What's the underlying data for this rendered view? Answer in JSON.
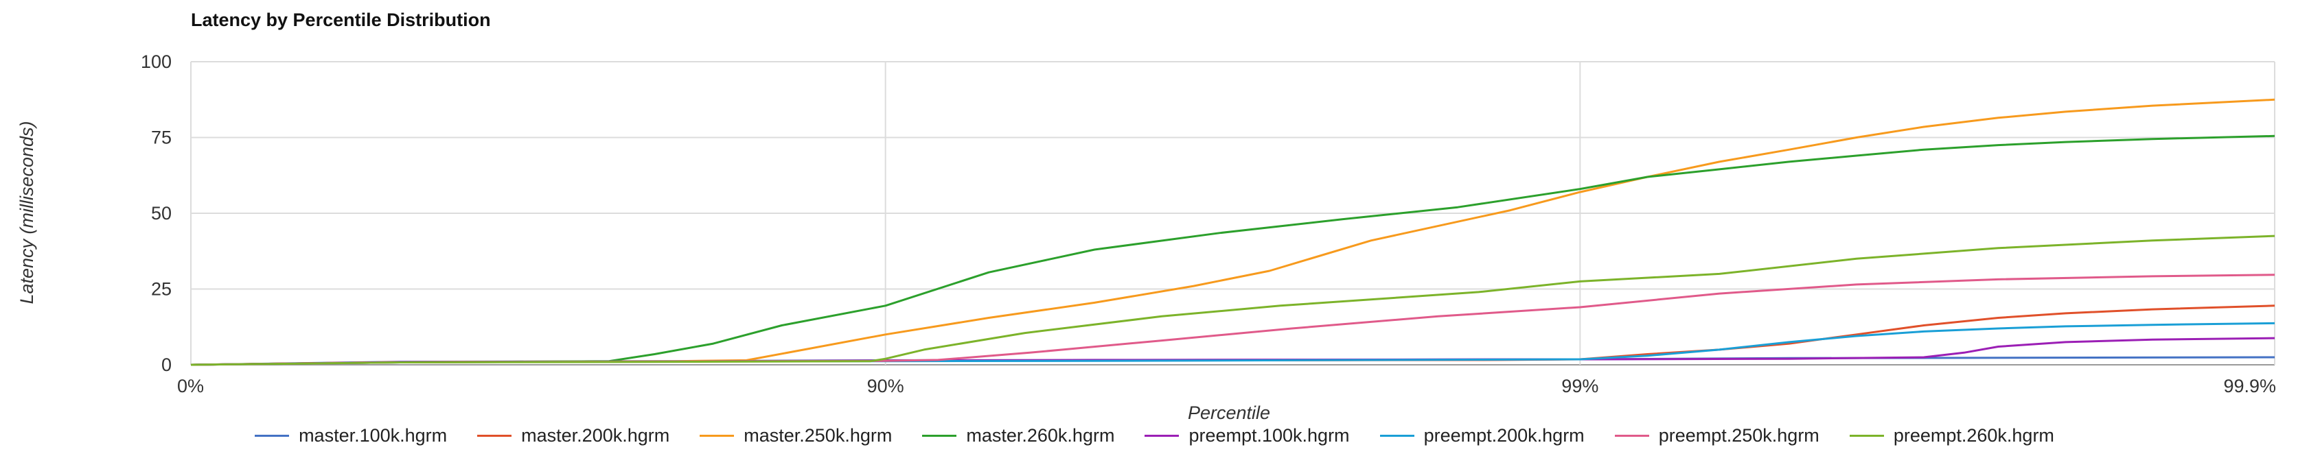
{
  "chart_data": {
    "type": "line",
    "title": "Latency by Percentile Distribution",
    "xlabel": "Percentile",
    "ylabel": "Latency (milliseconds)",
    "x_scale": "percentile-log",
    "x_ticks": [
      "0%",
      "90%",
      "99%",
      "99.9%"
    ],
    "x_tick_values": [
      0,
      90,
      99,
      99.9
    ],
    "ylim": [
      0,
      100
    ],
    "y_ticks": [
      0,
      25,
      50,
      75,
      100
    ],
    "grid": true,
    "legend_position": "bottom",
    "series": [
      {
        "name": "master.100k.hgrm",
        "color": "#4472c4",
        "x": [
          0,
          50,
          80,
          90,
          95,
          99,
          99.5,
          99.9
        ],
        "y": [
          0,
          1,
          1.2,
          1.5,
          1.5,
          1.8,
          2.2,
          2.5
        ]
      },
      {
        "name": "master.200k.hgrm",
        "color": "#e0502a",
        "x": [
          0,
          50,
          80,
          90,
          95,
          98.7,
          99,
          99.2,
          99.37,
          99.5,
          99.6,
          99.68,
          99.75,
          99.8,
          99.85,
          99.9
        ],
        "y": [
          0,
          0.9,
          1.1,
          1.3,
          1.4,
          1.6,
          1.8,
          3.5,
          5,
          7,
          10,
          13,
          15.5,
          17,
          18.3,
          19.5
        ]
      },
      {
        "name": "master.250k.hgrm",
        "color": "#f79a1d",
        "x": [
          0,
          50,
          80,
          84.15,
          86.9,
          90,
          92.9,
          95,
          96.4,
          97.2,
          98,
          98.74,
          99,
          99.2,
          99.37,
          99.5,
          99.6,
          99.68,
          99.75,
          99.8,
          99.85,
          99.9
        ],
        "y": [
          0,
          0.9,
          1.2,
          1.5,
          5,
          10,
          15.5,
          20.5,
          26,
          31,
          41,
          51,
          57,
          62,
          67,
          71,
          75,
          78.5,
          81.5,
          83.5,
          85.5,
          87.5
        ]
      },
      {
        "name": "master.260k.hgrm",
        "color": "#2ca02c",
        "x": [
          0,
          50,
          75,
          78.5,
          82.3,
          85.9,
          90,
          92.9,
          95,
          96.7,
          97.8,
          98.5,
          99,
          99.2,
          99.37,
          99.5,
          99.6,
          99.68,
          99.75,
          99.8,
          99.85,
          99.9
        ],
        "y": [
          0,
          0.8,
          1.2,
          3.5,
          7,
          13,
          19.5,
          30.5,
          38,
          43.5,
          48,
          52,
          58,
          62,
          64.5,
          67,
          69,
          71,
          72.5,
          73.5,
          74.5,
          75.5
        ]
      },
      {
        "name": "preempt.100k.hgrm",
        "color": "#9b1fb5",
        "x": [
          0,
          50,
          80,
          90,
          95,
          99,
          99.5,
          99.68,
          99.72,
          99.75,
          99.8,
          99.85,
          99.9
        ],
        "y": [
          0,
          0.9,
          1.1,
          1.4,
          1.6,
          1.8,
          2,
          2.5,
          4,
          6,
          7.5,
          8.3,
          8.8
        ]
      },
      {
        "name": "preempt.200k.hgrm",
        "color": "#1a9fd6",
        "x": [
          0,
          50,
          80,
          90,
          95,
          99,
          99.2,
          99.37,
          99.5,
          99.6,
          99.68,
          99.75,
          99.8,
          99.85,
          99.9
        ],
        "y": [
          0,
          0.8,
          1.1,
          1.2,
          1.3,
          1.8,
          3,
          5,
          7.5,
          9.5,
          11,
          12,
          12.7,
          13.2,
          13.7
        ]
      },
      {
        "name": "preempt.250k.hgrm",
        "color": "#e05a8a",
        "x": [
          0,
          50,
          80,
          90,
          91.6,
          93.8,
          96,
          97.4,
          98.4,
          99,
          99.37,
          99.6,
          99.75,
          99.85,
          99.9
        ],
        "y": [
          0,
          0.8,
          1.1,
          1.3,
          1.6,
          4,
          8,
          12,
          16,
          19,
          23.5,
          26.5,
          28.2,
          29.2,
          29.7
        ]
      },
      {
        "name": "preempt.260k.hgrm",
        "color": "#7cb32a",
        "x": [
          0,
          50,
          80,
          89.5,
          90,
          91.2,
          93.7,
          96,
          97.3,
          98.6,
          99,
          99.37,
          99.6,
          99.75,
          99.85,
          99.9
        ],
        "y": [
          0,
          0.8,
          1,
          1.2,
          2,
          5,
          10.5,
          16,
          19.5,
          24,
          27.5,
          30,
          35,
          38.5,
          41,
          42.5
        ]
      }
    ]
  }
}
